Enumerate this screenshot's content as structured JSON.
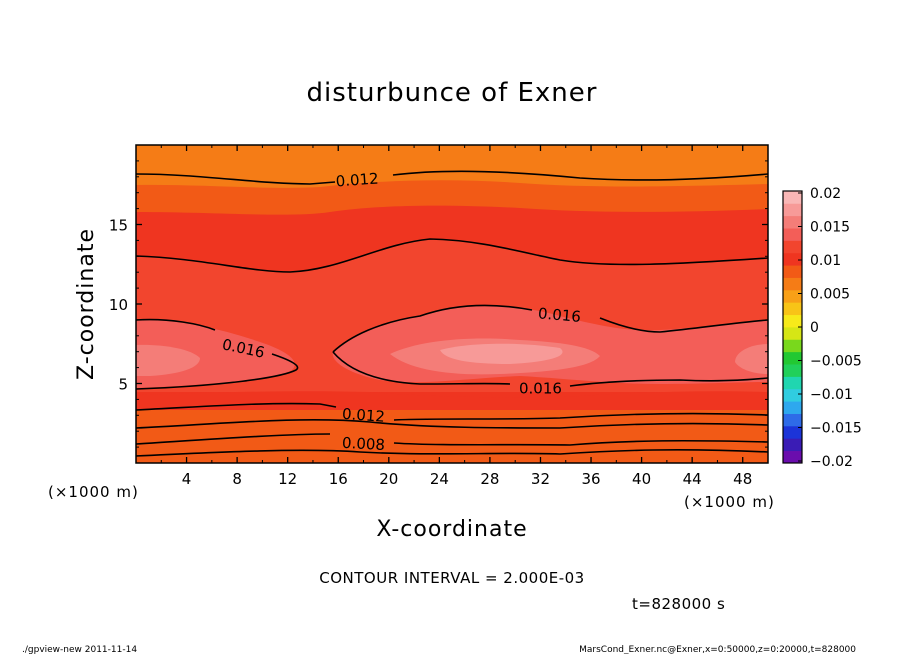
{
  "chart_data": {
    "type": "heatmap",
    "title": "disturbunce of Exner",
    "xlabel": "X-coordinate",
    "ylabel": "Z-coordinate",
    "x_unit": "(×1000 m)",
    "y_unit": "(×1000 m)",
    "xlim": [
      0,
      50
    ],
    "ylim": [
      0,
      20
    ],
    "x_ticks": [
      4,
      8,
      12,
      16,
      20,
      24,
      28,
      32,
      36,
      40,
      44,
      48
    ],
    "y_ticks": [
      5,
      10,
      15
    ],
    "colorbar": {
      "ticks": [
        0.02,
        0.015,
        0.01,
        0.005,
        0,
        -0.005,
        -0.01,
        -0.015,
        -0.02
      ],
      "labels": [
        "0.02",
        "0.015",
        "0.01",
        "0.005",
        "0",
        "−0.005",
        "−0.01",
        "−0.015",
        "−0.02"
      ],
      "colors": [
        "#6a0dad",
        "#3a1cb5",
        "#1c34d8",
        "#2e6be8",
        "#2ea8ee",
        "#30cde0",
        "#20d6b0",
        "#21d05a",
        "#22c832",
        "#79d81c",
        "#d6e615",
        "#f7ea1a",
        "#f8c417",
        "#f8a017",
        "#f57c16",
        "#f25a16",
        "#ef3520",
        "#f2452e",
        "#f35e58",
        "#f47d78",
        "#f79a98",
        "#f9b7b6"
      ]
    },
    "contour_labels": [
      {
        "text": "0.012",
        "x": 17.5,
        "z": 17.8,
        "angle": -4
      },
      {
        "text": "0.016",
        "x": 8.5,
        "z": 7.2,
        "angle": 12
      },
      {
        "text": "0.016",
        "x": 33.5,
        "z": 9.3,
        "angle": 5
      },
      {
        "text": "0.016",
        "x": 32.0,
        "z": 4.7,
        "angle": 0
      },
      {
        "text": "0.012",
        "x": 18.0,
        "z": 3.0,
        "angle": 4
      },
      {
        "text": "0.008",
        "x": 18.0,
        "z": 1.2,
        "angle": 3
      }
    ],
    "contour_interval_text": "CONTOUR INTERVAL = 2.000E-03",
    "time_text": "t=828000 s"
  },
  "footer": {
    "left": "./gpview-new   2011-11-14",
    "right": "MarsCond_Exner.nc@Exner,x=0:50000,z=0:20000,t=828000"
  }
}
